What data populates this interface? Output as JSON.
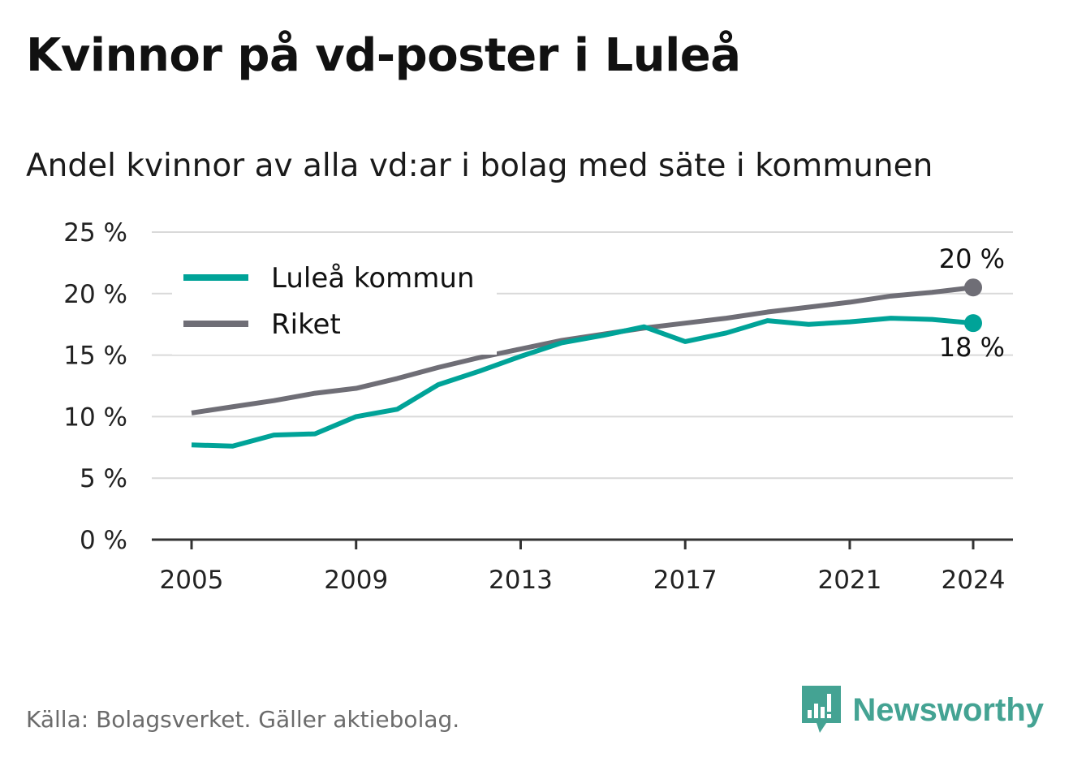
{
  "title": "Kvinnor på vd-poster i Luleå",
  "subtitle": "Andel kvinnor av alla vd:ar i bolag med säte i kommunen",
  "source": "Källa: Bolagsverket. Gäller aktiebolag.",
  "brand": {
    "name": "Newsworthy",
    "icon": "newsworthy-logo-icon"
  },
  "chart_data": {
    "type": "line",
    "x": [
      2005,
      2006,
      2007,
      2008,
      2009,
      2010,
      2011,
      2012,
      2013,
      2014,
      2015,
      2016,
      2017,
      2018,
      2019,
      2020,
      2021,
      2022,
      2023,
      2024
    ],
    "series": [
      {
        "name": "Luleå kommun",
        "color": "#00a398",
        "values": [
          7.7,
          7.6,
          8.5,
          8.6,
          10.0,
          10.6,
          12.6,
          13.7,
          14.9,
          16.0,
          16.6,
          17.3,
          16.1,
          16.8,
          17.8,
          17.5,
          17.7,
          18.0,
          17.9,
          17.6
        ],
        "end_label": "18 %"
      },
      {
        "name": "Riket",
        "color": "#6f6e76",
        "values": [
          10.3,
          10.8,
          11.3,
          11.9,
          12.3,
          13.1,
          14.0,
          14.8,
          15.5,
          16.2,
          16.7,
          17.2,
          17.6,
          18.0,
          18.5,
          18.9,
          19.3,
          19.8,
          20.1,
          20.5
        ],
        "end_label": "20 %"
      }
    ],
    "y_ticks": [
      "0 %",
      "5 %",
      "10 %",
      "15 %",
      "20 %",
      "25 %"
    ],
    "y_tick_values": [
      0,
      5,
      10,
      15,
      20,
      25
    ],
    "x_ticks": [
      "2005",
      "2009",
      "2013",
      "2017",
      "2021",
      "2024"
    ],
    "x_tick_values": [
      2005,
      2009,
      2013,
      2017,
      2021,
      2024
    ],
    "ylim": [
      0,
      25
    ],
    "xlim": [
      2004,
      2025
    ],
    "grid": true,
    "legend_position": "top-left",
    "xlabel": "",
    "ylabel": ""
  }
}
